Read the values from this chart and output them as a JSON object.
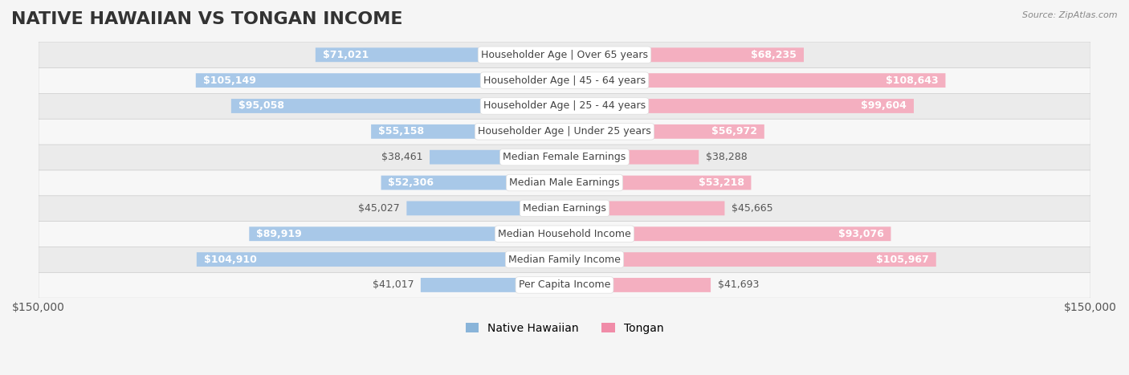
{
  "title": "NATIVE HAWAIIAN VS TONGAN INCOME",
  "source": "Source: ZipAtlas.com",
  "categories": [
    "Per Capita Income",
    "Median Family Income",
    "Median Household Income",
    "Median Earnings",
    "Median Male Earnings",
    "Median Female Earnings",
    "Householder Age | Under 25 years",
    "Householder Age | 25 - 44 years",
    "Householder Age | 45 - 64 years",
    "Householder Age | Over 65 years"
  ],
  "native_hawaiian": [
    41017,
    104910,
    89919,
    45027,
    52306,
    38461,
    55158,
    95058,
    105149,
    71021
  ],
  "tongan": [
    41693,
    105967,
    93076,
    45665,
    53218,
    38288,
    56972,
    99604,
    108643,
    68235
  ],
  "max_val": 150000,
  "bar_height": 0.55,
  "bg_color": "#f0f0f0",
  "row_color_odd": "#f7f7f7",
  "row_color_even": "#ebebeb",
  "blue_color": "#89b4d9",
  "pink_color": "#f08ca8",
  "blue_fill": "#a8c8e8",
  "pink_fill": "#f4afc0",
  "label_bg": "#ffffff",
  "title_fontsize": 16,
  "tick_fontsize": 10,
  "label_fontsize": 9,
  "value_fontsize": 9
}
